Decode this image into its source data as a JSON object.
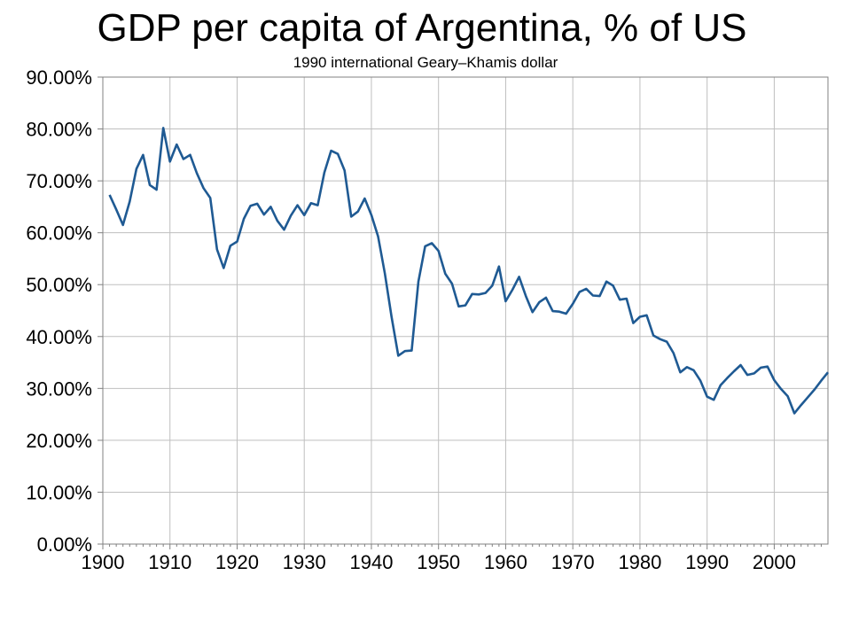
{
  "chart_data": {
    "type": "line",
    "title": "GDP per capita of Argentina, % of US",
    "subtitle": "1990 international Geary–Khamis dollar",
    "xlabel": "",
    "ylabel": "",
    "xlim": [
      1900,
      2008
    ],
    "ylim": [
      0,
      90
    ],
    "grid": true,
    "legend": "none",
    "x_ticks": [
      "1900",
      "1910",
      "1920",
      "1930",
      "1940",
      "1950",
      "1960",
      "1970",
      "1980",
      "1990",
      "2000"
    ],
    "y_ticks": [
      "0.00%",
      "10.00%",
      "20.00%",
      "30.00%",
      "40.00%",
      "50.00%",
      "60.00%",
      "70.00%",
      "80.00%",
      "90.00%"
    ],
    "colors": {
      "line": "#1f5a93",
      "grid": "#bfbfbf",
      "axis": "#808080"
    },
    "series": [
      {
        "name": "",
        "x": [
          1901,
          1902,
          1903,
          1904,
          1905,
          1906,
          1907,
          1908,
          1909,
          1910,
          1911,
          1912,
          1913,
          1914,
          1915,
          1916,
          1917,
          1918,
          1919,
          1920,
          1921,
          1922,
          1923,
          1924,
          1925,
          1926,
          1927,
          1928,
          1929,
          1930,
          1931,
          1932,
          1933,
          1934,
          1935,
          1936,
          1937,
          1938,
          1939,
          1940,
          1941,
          1942,
          1943,
          1944,
          1945,
          1946,
          1947,
          1948,
          1949,
          1950,
          1951,
          1952,
          1953,
          1954,
          1955,
          1956,
          1957,
          1958,
          1959,
          1960,
          1961,
          1962,
          1963,
          1964,
          1965,
          1966,
          1967,
          1968,
          1969,
          1970,
          1971,
          1972,
          1973,
          1974,
          1975,
          1976,
          1977,
          1978,
          1979,
          1980,
          1981,
          1982,
          1983,
          1984,
          1985,
          1986,
          1987,
          1988,
          1989,
          1990,
          1991,
          1992,
          1993,
          1994,
          1995,
          1996,
          1997,
          1998,
          1999,
          2000,
          2001,
          2002,
          2003,
          2004,
          2005,
          2006,
          2007,
          2008
        ],
        "values": [
          67.3,
          64.5,
          61.5,
          66,
          72.3,
          75,
          69.2,
          68.3,
          80.2,
          73.7,
          77,
          74.2,
          75,
          71.5,
          68.6,
          66.7,
          56.8,
          53.2,
          57.5,
          58.3,
          62.7,
          65.2,
          65.6,
          63.5,
          65,
          62.3,
          60.6,
          63.3,
          65.3,
          63.4,
          65.7,
          65.3,
          71.6,
          75.8,
          75.2,
          72,
          63.1,
          64.1,
          66.6,
          63.4,
          59.3,
          52.2,
          43.8,
          36.3,
          37.2,
          37.3,
          50.6,
          57.4,
          58,
          56.5,
          52.1,
          50.2,
          45.8,
          46,
          48.2,
          48.1,
          48.4,
          49.8,
          53.5,
          46.8,
          49,
          51.5,
          47.8,
          44.7,
          46.6,
          47.5,
          44.9,
          44.8,
          44.4,
          46.3,
          48.6,
          49.2,
          47.9,
          47.8,
          50.6,
          49.8,
          47.1,
          47.3,
          42.6,
          43.8,
          44.1,
          40.2,
          39.5,
          39,
          36.8,
          33.1,
          34.1,
          33.5,
          31.5,
          28.4,
          27.8,
          30.6,
          32,
          33.3,
          34.5,
          32.6,
          32.9,
          34,
          34.2,
          31.6,
          29.9,
          28.5,
          25.2,
          26.8,
          28.3,
          29.8,
          31.5,
          33.1
        ]
      }
    ]
  }
}
